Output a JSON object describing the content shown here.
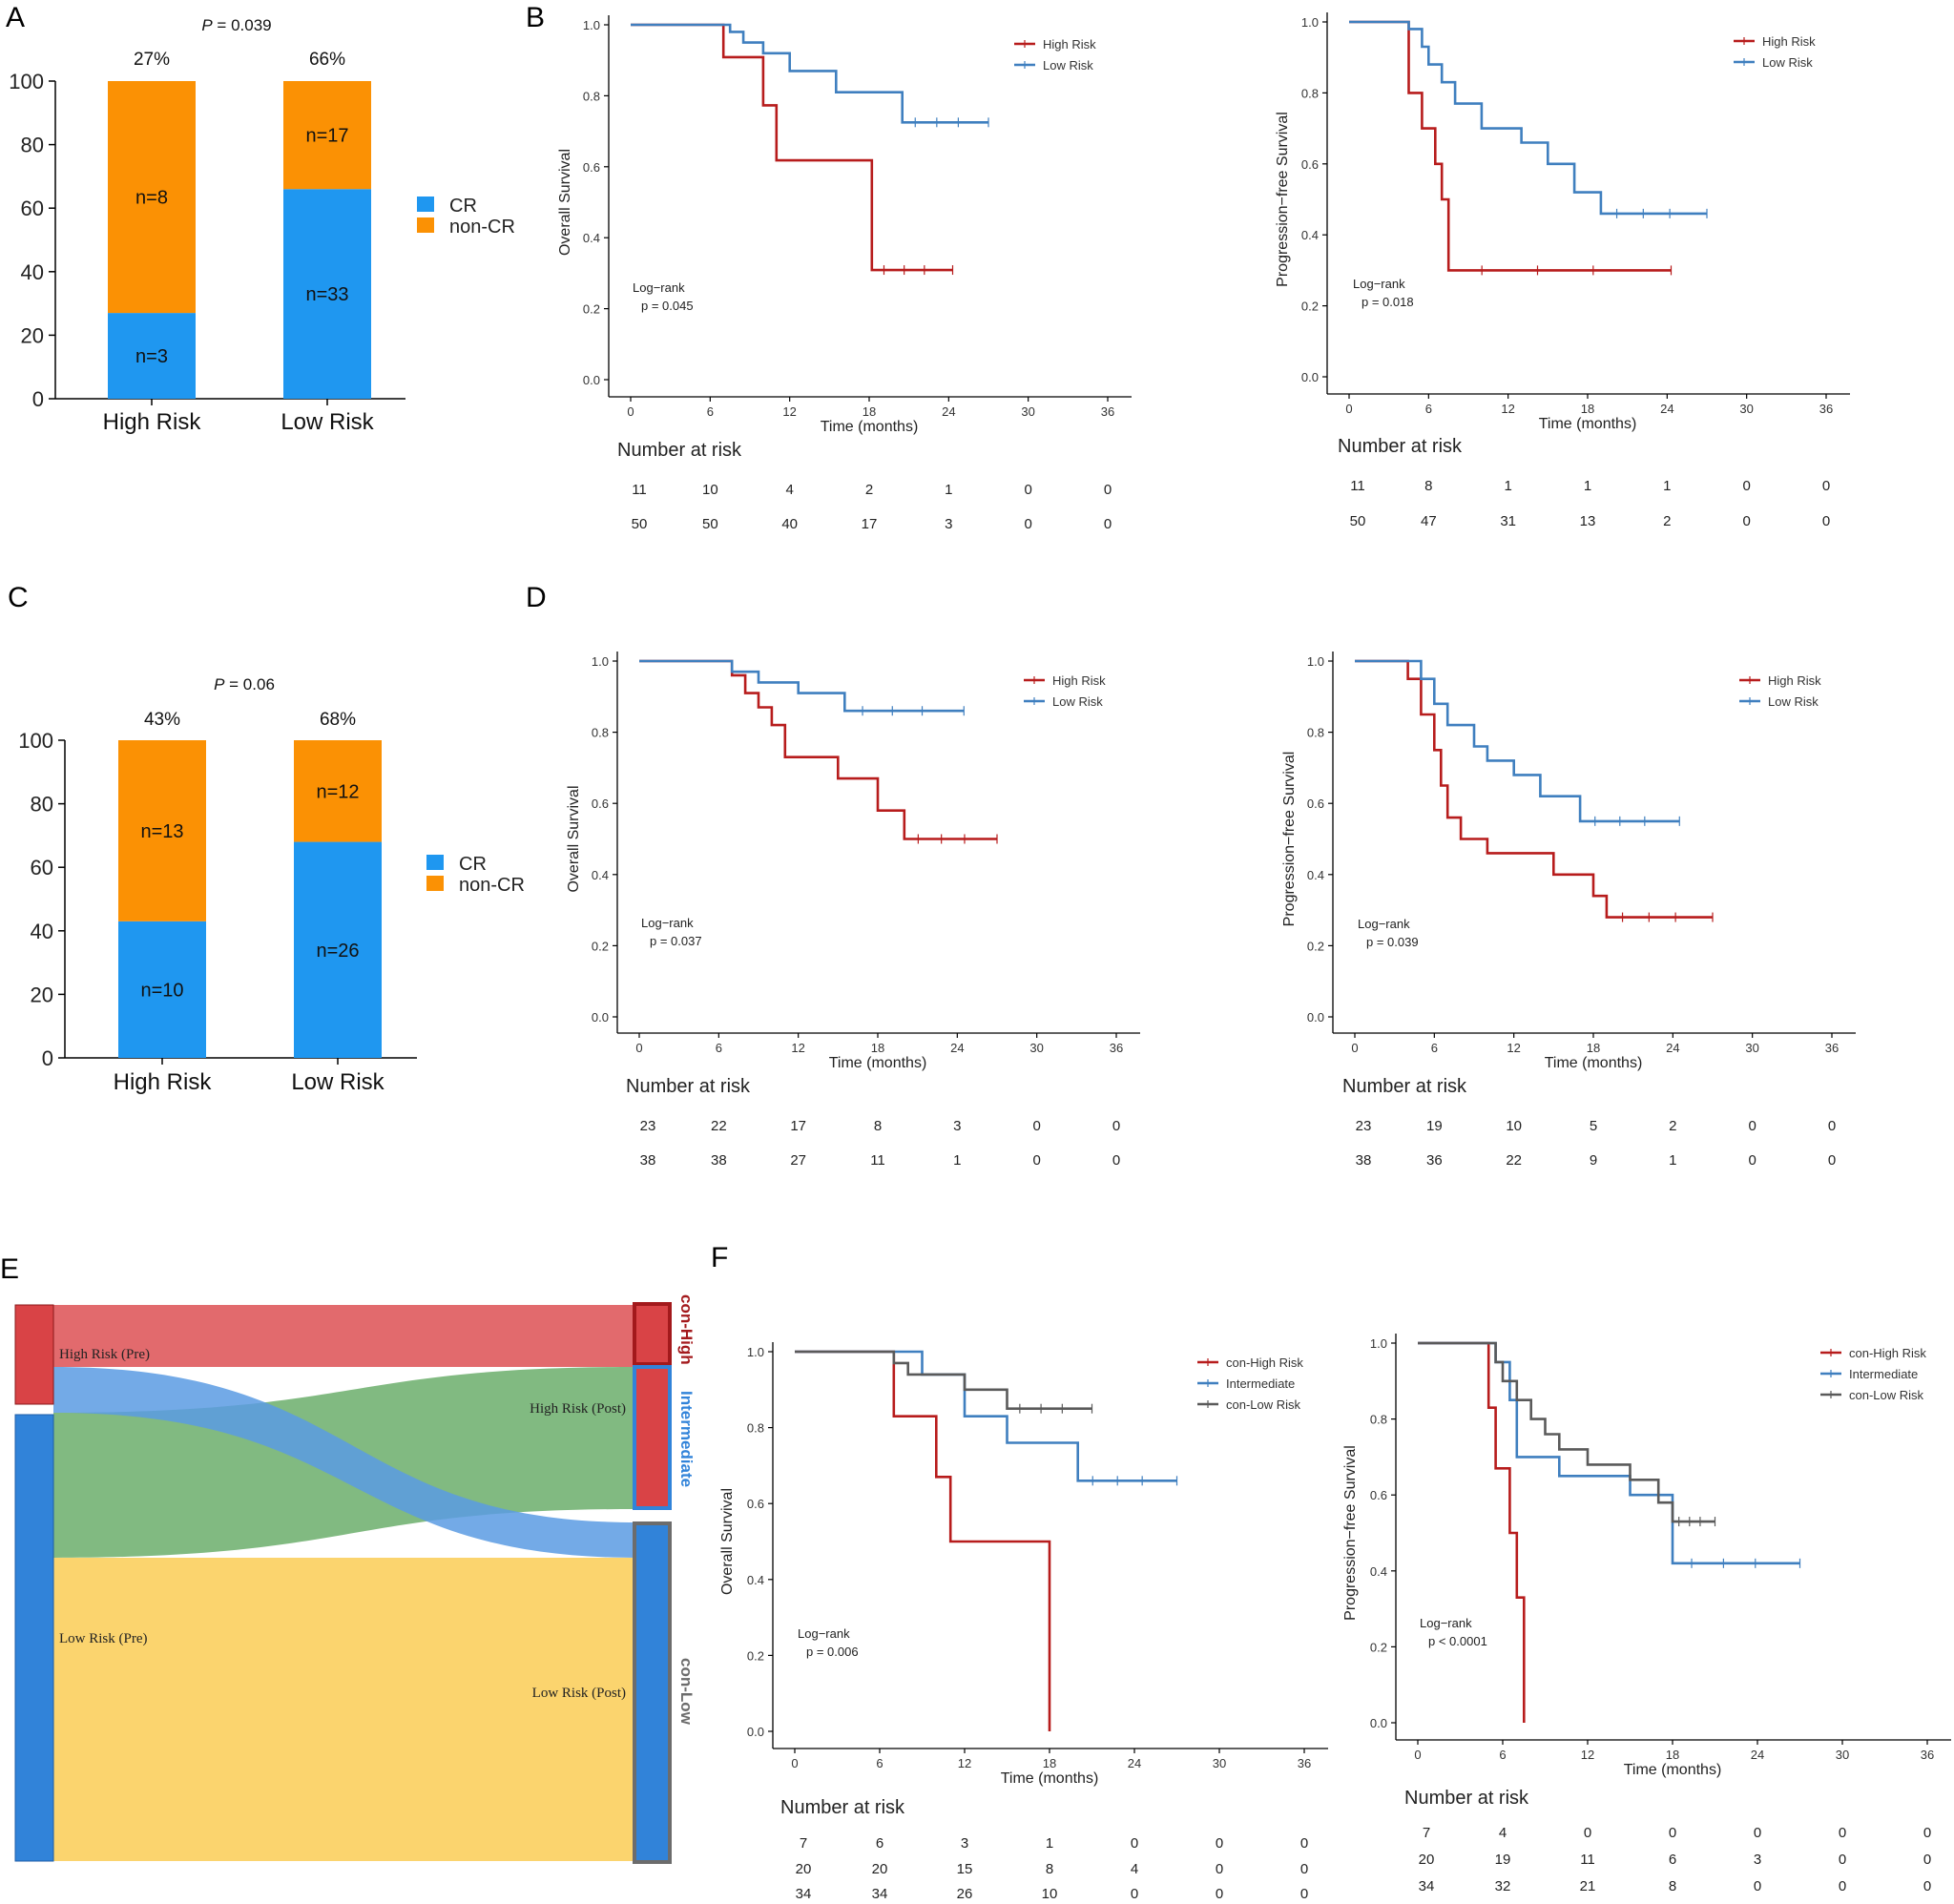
{
  "panels": {
    "A": "A",
    "B": "B",
    "C": "C",
    "D": "D",
    "E": "E",
    "F": "F"
  },
  "colors": {
    "cr": "#1f97f0",
    "noncr": "#fb9104",
    "high": "#b71c1c",
    "low": "#3f7fbf",
    "inter": "#3f7fbf",
    "conlow": "#5a5a5a",
    "sk_high": "#d94346",
    "sk_low": "#3183d9",
    "sk_flow_hh": "#e26a6d",
    "sk_flow_hl": "#5b9be3",
    "sk_flow_lh": "#73b273",
    "sk_flow_ll": "#fbd46e",
    "sk_border_h": "#a3191c",
    "sk_border_l": "#6c6c6c"
  },
  "chart_data": [
    {
      "id": "A",
      "type": "bar",
      "stacked": true,
      "categories": [
        "High Risk",
        "Low Risk"
      ],
      "series": [
        {
          "name": "CR",
          "values": [
            27,
            66
          ],
          "counts": [
            "n=3",
            "n=33"
          ]
        },
        {
          "name": "non-CR",
          "values": [
            73,
            34
          ],
          "counts": [
            "n=8",
            "n=17"
          ]
        }
      ],
      "top_labels": [
        "27%",
        "66%"
      ],
      "pvalue_prefix": "P",
      "pvalue_rest": " = 0.039",
      "ylim": [
        0,
        100
      ],
      "yticks": [
        "0",
        "20",
        "40",
        "60",
        "80",
        "100"
      ]
    },
    {
      "id": "B1",
      "type": "line",
      "ylabel": "Overall Survival",
      "xlabel": "Time (months)",
      "xlim": [
        0,
        36
      ],
      "ylim": [
        0,
        1
      ],
      "xticks": [
        "0",
        "6",
        "12",
        "18",
        "24",
        "30",
        "36"
      ],
      "yticks": [
        "0.0",
        "0.2",
        "0.4",
        "0.6",
        "0.8",
        "1.0"
      ],
      "legend": [
        "High Risk",
        "Low Risk"
      ],
      "stat1": "Log−rank",
      "stat2": "p = 0.045",
      "series": [
        {
          "name": "High Risk",
          "x": [
            0,
            7,
            7,
            10,
            10,
            11,
            11,
            18.2,
            18.2,
            24.3
          ],
          "y": [
            1,
            1,
            0.909,
            0.909,
            0.773,
            0.773,
            0.618,
            0.618,
            0.309,
            0.309
          ]
        },
        {
          "name": "Low Risk",
          "x": [
            0,
            7.5,
            7.5,
            8.5,
            8.5,
            10,
            10,
            12,
            12,
            15.5,
            15.5,
            20.5,
            20.5,
            27
          ],
          "y": [
            1,
            1,
            0.98,
            0.98,
            0.95,
            0.95,
            0.92,
            0.92,
            0.87,
            0.87,
            0.81,
            0.81,
            0.725,
            0.725
          ]
        }
      ],
      "risk_title": "Number at risk",
      "risk_rows": [
        [
          "11",
          "10",
          "4",
          "2",
          "1",
          "0",
          "0"
        ],
        [
          "50",
          "50",
          "40",
          "17",
          "3",
          "0",
          "0"
        ]
      ]
    },
    {
      "id": "B2",
      "type": "line",
      "ylabel": "Progression−free Survival",
      "xlabel": "Time (months)",
      "xlim": [
        0,
        36
      ],
      "ylim": [
        0,
        1
      ],
      "xticks": [
        "0",
        "6",
        "12",
        "18",
        "24",
        "30",
        "36"
      ],
      "yticks": [
        "0.0",
        "0.2",
        "0.4",
        "0.6",
        "0.8",
        "1.0"
      ],
      "legend": [
        "High Risk",
        "Low Risk"
      ],
      "stat1": "Log−rank",
      "stat2": "p = 0.018",
      "series": [
        {
          "name": "High Risk",
          "x": [
            0,
            4.5,
            4.5,
            5.5,
            5.5,
            6.5,
            6.5,
            7,
            7,
            7.5,
            7.5,
            24.3
          ],
          "y": [
            1,
            1,
            0.8,
            0.8,
            0.7,
            0.7,
            0.6,
            0.6,
            0.5,
            0.5,
            0.3,
            0.3
          ]
        },
        {
          "name": "Low Risk",
          "x": [
            0,
            4.5,
            4.5,
            5.5,
            5.5,
            6,
            6,
            7,
            7,
            8,
            8,
            10,
            10,
            13,
            13,
            15,
            15,
            17,
            17,
            19,
            19,
            27
          ],
          "y": [
            1,
            1,
            0.98,
            0.98,
            0.93,
            0.93,
            0.88,
            0.88,
            0.83,
            0.83,
            0.77,
            0.77,
            0.7,
            0.7,
            0.66,
            0.66,
            0.6,
            0.6,
            0.52,
            0.52,
            0.46,
            0.46
          ]
        }
      ],
      "risk_title": "Number at risk",
      "risk_rows": [
        [
          "11",
          "8",
          "1",
          "1",
          "1",
          "0",
          "0"
        ],
        [
          "50",
          "47",
          "31",
          "13",
          "2",
          "0",
          "0"
        ]
      ]
    },
    {
      "id": "C",
      "type": "bar",
      "stacked": true,
      "categories": [
        "High Risk",
        "Low Risk"
      ],
      "series": [
        {
          "name": "CR",
          "values": [
            43,
            68
          ],
          "counts": [
            "n=10",
            "n=26"
          ]
        },
        {
          "name": "non-CR",
          "values": [
            57,
            32
          ],
          "counts": [
            "n=13",
            "n=12"
          ]
        }
      ],
      "top_labels": [
        "43%",
        "68%"
      ],
      "pvalue_prefix": "P",
      "pvalue_rest": " = 0.06",
      "ylim": [
        0,
        100
      ],
      "yticks": [
        "0",
        "20",
        "40",
        "60",
        "80",
        "100"
      ]
    },
    {
      "id": "D1",
      "type": "line",
      "ylabel": "Overall Survival",
      "xlabel": "Time (months)",
      "xlim": [
        0,
        36
      ],
      "ylim": [
        0,
        1
      ],
      "xticks": [
        "0",
        "6",
        "12",
        "18",
        "24",
        "30",
        "36"
      ],
      "yticks": [
        "0.0",
        "0.2",
        "0.4",
        "0.6",
        "0.8",
        "1.0"
      ],
      "legend": [
        "High Risk",
        "Low Risk"
      ],
      "stat1": "Log−rank",
      "stat2": "p = 0.037",
      "series": [
        {
          "name": "High Risk",
          "x": [
            0,
            7,
            7,
            8,
            8,
            9,
            9,
            10,
            10,
            11,
            11,
            15,
            15,
            18,
            18,
            20,
            20,
            27
          ],
          "y": [
            1,
            1,
            0.96,
            0.96,
            0.91,
            0.91,
            0.87,
            0.87,
            0.82,
            0.82,
            0.73,
            0.73,
            0.67,
            0.67,
            0.58,
            0.58,
            0.5,
            0.5
          ]
        },
        {
          "name": "Low Risk",
          "x": [
            0,
            7,
            7,
            9,
            9,
            12,
            12,
            15.5,
            15.5,
            24.5
          ],
          "y": [
            1,
            1,
            0.97,
            0.97,
            0.94,
            0.94,
            0.91,
            0.91,
            0.86,
            0.86
          ]
        }
      ],
      "risk_title": "Number at risk",
      "risk_rows": [
        [
          "23",
          "22",
          "17",
          "8",
          "3",
          "0",
          "0"
        ],
        [
          "38",
          "38",
          "27",
          "11",
          "1",
          "0",
          "0"
        ]
      ]
    },
    {
      "id": "D2",
      "type": "line",
      "ylabel": "Progression−free Survival",
      "xlabel": "Time (months)",
      "xlim": [
        0,
        36
      ],
      "ylim": [
        0,
        1
      ],
      "xticks": [
        "0",
        "6",
        "12",
        "18",
        "24",
        "30",
        "36"
      ],
      "yticks": [
        "0.0",
        "0.2",
        "0.4",
        "0.6",
        "0.8",
        "1.0"
      ],
      "legend": [
        "High Risk",
        "Low Risk"
      ],
      "stat1": "Log−rank",
      "stat2": "p = 0.039",
      "series": [
        {
          "name": "High Risk",
          "x": [
            0,
            4,
            4,
            5,
            5,
            6,
            6,
            6.5,
            6.5,
            7,
            7,
            8,
            8,
            10,
            10,
            15,
            15,
            18,
            18,
            19,
            19,
            27
          ],
          "y": [
            1,
            1,
            0.95,
            0.95,
            0.85,
            0.85,
            0.75,
            0.75,
            0.65,
            0.65,
            0.56,
            0.56,
            0.5,
            0.5,
            0.46,
            0.46,
            0.4,
            0.4,
            0.34,
            0.34,
            0.28,
            0.28
          ]
        },
        {
          "name": "Low Risk",
          "x": [
            0,
            5,
            5,
            6,
            6,
            7,
            7,
            9,
            9,
            10,
            10,
            12,
            12,
            14,
            14,
            17,
            17,
            24.5
          ],
          "y": [
            1,
            1,
            0.95,
            0.95,
            0.88,
            0.88,
            0.82,
            0.82,
            0.76,
            0.76,
            0.72,
            0.72,
            0.68,
            0.68,
            0.62,
            0.62,
            0.55,
            0.55
          ]
        }
      ],
      "risk_title": "Number at risk",
      "risk_rows": [
        [
          "23",
          "19",
          "10",
          "5",
          "2",
          "0",
          "0"
        ],
        [
          "38",
          "36",
          "22",
          "9",
          "1",
          "0",
          "0"
        ]
      ]
    },
    {
      "id": "E",
      "type": "sankey",
      "left_nodes": [
        "High Risk (Pre)",
        "Low Risk (Pre)"
      ],
      "mid_labels": [
        "High Risk (Post)",
        "Low Risk (Post)"
      ],
      "right_nodes": [
        "con-High",
        "Intermediate",
        "con-Low"
      ],
      "flows": [
        [
          "High Risk (Pre)",
          "High Risk (Post)"
        ],
        [
          "High Risk (Pre)",
          "Low Risk (Post)"
        ],
        [
          "Low Risk (Pre)",
          "High Risk (Post)"
        ],
        [
          "Low Risk (Pre)",
          "Low Risk (Post)"
        ]
      ]
    },
    {
      "id": "F1",
      "type": "line",
      "ylabel": "Overall Survival",
      "xlabel": "Time (months)",
      "xlim": [
        0,
        36
      ],
      "ylim": [
        0,
        1
      ],
      "xticks": [
        "0",
        "6",
        "12",
        "18",
        "24",
        "30",
        "36"
      ],
      "yticks": [
        "0.0",
        "0.2",
        "0.4",
        "0.6",
        "0.8",
        "1.0"
      ],
      "legend": [
        "con-High Risk",
        "Intermediate",
        "con-Low Risk"
      ],
      "stat1": "Log−rank",
      "stat2": "p = 0.006",
      "series": [
        {
          "name": "con-High Risk",
          "x": [
            0,
            7,
            7,
            10,
            10,
            11,
            11,
            18,
            18
          ],
          "y": [
            1,
            1,
            0.83,
            0.83,
            0.67,
            0.67,
            0.5,
            0.5,
            0
          ]
        },
        {
          "name": "Intermediate",
          "x": [
            0,
            9,
            9,
            12,
            12,
            15,
            15,
            20,
            20,
            27
          ],
          "y": [
            1,
            1,
            0.94,
            0.94,
            0.83,
            0.83,
            0.76,
            0.76,
            0.66,
            0.66
          ]
        },
        {
          "name": "con-Low Risk",
          "x": [
            0,
            7,
            7,
            8,
            8,
            9,
            9,
            12,
            12,
            15,
            15,
            21
          ],
          "y": [
            1,
            1,
            0.97,
            0.97,
            0.94,
            0.94,
            0.94,
            0.94,
            0.9,
            0.9,
            0.85,
            0.85
          ]
        }
      ],
      "risk_title": "Number at risk",
      "risk_rows": [
        [
          "7",
          "6",
          "3",
          "1",
          "0",
          "0",
          "0"
        ],
        [
          "20",
          "20",
          "15",
          "8",
          "4",
          "0",
          "0"
        ],
        [
          "34",
          "34",
          "26",
          "10",
          "0",
          "0",
          "0"
        ]
      ]
    },
    {
      "id": "F2",
      "type": "line",
      "ylabel": "Progression−free Survival",
      "xlabel": "Time (months)",
      "xlim": [
        0,
        36
      ],
      "ylim": [
        0,
        1
      ],
      "xticks": [
        "0",
        "6",
        "12",
        "18",
        "24",
        "30",
        "36"
      ],
      "yticks": [
        "0.0",
        "0.2",
        "0.4",
        "0.6",
        "0.8",
        "1.0"
      ],
      "legend": [
        "con-High Risk",
        "Intermediate",
        "con-Low Risk"
      ],
      "stat1": "Log−rank",
      "stat2": "p < 0.0001",
      "series": [
        {
          "name": "con-High Risk",
          "x": [
            0,
            5,
            5,
            5.5,
            5.5,
            6.5,
            6.5,
            7,
            7,
            7.5,
            7.5
          ],
          "y": [
            1,
            1,
            0.83,
            0.83,
            0.67,
            0.67,
            0.5,
            0.5,
            0.33,
            0.33,
            0
          ]
        },
        {
          "name": "Intermediate",
          "x": [
            0,
            5.5,
            5.5,
            6.5,
            6.5,
            7,
            7,
            10,
            10,
            15,
            15,
            18,
            18,
            27
          ],
          "y": [
            1,
            1,
            0.95,
            0.95,
            0.85,
            0.85,
            0.7,
            0.7,
            0.65,
            0.65,
            0.6,
            0.6,
            0.42,
            0.42
          ]
        },
        {
          "name": "con-Low Risk",
          "x": [
            0,
            5.5,
            5.5,
            6,
            6,
            7,
            7,
            8,
            8,
            9,
            9,
            10,
            10,
            12,
            12,
            15,
            15,
            17,
            17,
            18,
            18,
            21
          ],
          "y": [
            1,
            1,
            0.95,
            0.95,
            0.9,
            0.9,
            0.85,
            0.85,
            0.8,
            0.8,
            0.76,
            0.76,
            0.72,
            0.72,
            0.68,
            0.68,
            0.64,
            0.64,
            0.58,
            0.58,
            0.53,
            0.53
          ]
        }
      ],
      "risk_title": "Number at risk",
      "risk_rows": [
        [
          "7",
          "4",
          "0",
          "0",
          "0",
          "0",
          "0"
        ],
        [
          "20",
          "19",
          "11",
          "6",
          "3",
          "0",
          "0"
        ],
        [
          "34",
          "32",
          "21",
          "8",
          "0",
          "0",
          "0"
        ]
      ]
    }
  ]
}
